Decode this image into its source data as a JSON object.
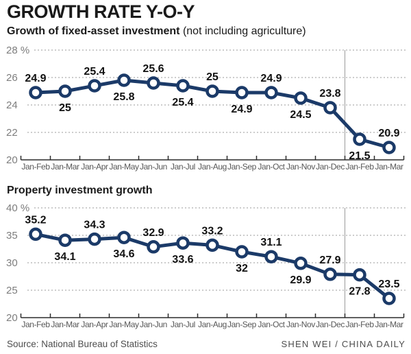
{
  "title": "GROWTH RATE Y-O-Y",
  "footer": {
    "source": "Source: National Bureau of Statistics",
    "credit": "SHEN WEI / CHINA DAILY"
  },
  "colors": {
    "line": "#1b3a68",
    "marker_fill": "#ffffff",
    "grid": "#999999",
    "axis": "#2b2b2b",
    "separator": "#9b9b9b",
    "value_label": "#111111",
    "ytick_text": "#7d7d7d",
    "xtick_text": "#565656"
  },
  "chart_data": [
    {
      "type": "line",
      "title_bold": "Growth of fixed-asset investment",
      "title_note": "(not including agriculture)",
      "categories": [
        "Jan-Feb",
        "Jan-Mar",
        "Jan-Apr",
        "Jan-May",
        "Jan-Jun",
        "Jan-Jul",
        "Jan-Aug",
        "Jan-Sep",
        "Jan-Oct",
        "Jan-Nov",
        "Jan-Dec",
        "Jan-Feb",
        "Jan-Mar"
      ],
      "values": [
        24.9,
        25,
        25.4,
        25.8,
        25.6,
        25.4,
        25,
        24.9,
        24.9,
        24.5,
        23.8,
        21.5,
        20.9
      ],
      "value_label_side": [
        "above",
        "below",
        "above",
        "below",
        "above",
        "below",
        "above",
        "below",
        "above",
        "below",
        "above",
        "below",
        "above"
      ],
      "ylim": [
        20,
        28
      ],
      "ytick_labels": [
        "28 %",
        "26",
        "24",
        "22",
        "20"
      ],
      "grid": "dashed-horizontal",
      "legend": "none",
      "separator_after_index": 10
    },
    {
      "type": "line",
      "title_bold": "Property investment growth",
      "title_note": "",
      "categories": [
        "Jan-Feb",
        "Jan-Mar",
        "Jan-Apr",
        "Jan-May",
        "Jan-Jun",
        "Jan-Jul",
        "Jan-Aug",
        "Jan-Sep",
        "Jan-Oct",
        "Jan-Nov",
        "Jan-Dec",
        "Jan-Feb",
        "Jan-Mar"
      ],
      "values": [
        35.2,
        34.1,
        34.3,
        34.6,
        32.9,
        33.6,
        33.2,
        32,
        31.1,
        29.9,
        27.9,
        27.8,
        23.5
      ],
      "value_label_side": [
        "above",
        "below",
        "above",
        "below",
        "above",
        "below",
        "above",
        "below",
        "above",
        "below",
        "above",
        "below",
        "above"
      ],
      "ylim": [
        20,
        40
      ],
      "ytick_labels": [
        "40 %",
        "35",
        "30",
        "25",
        "20"
      ],
      "grid": "dashed-horizontal",
      "legend": "none",
      "separator_after_index": 10
    }
  ]
}
